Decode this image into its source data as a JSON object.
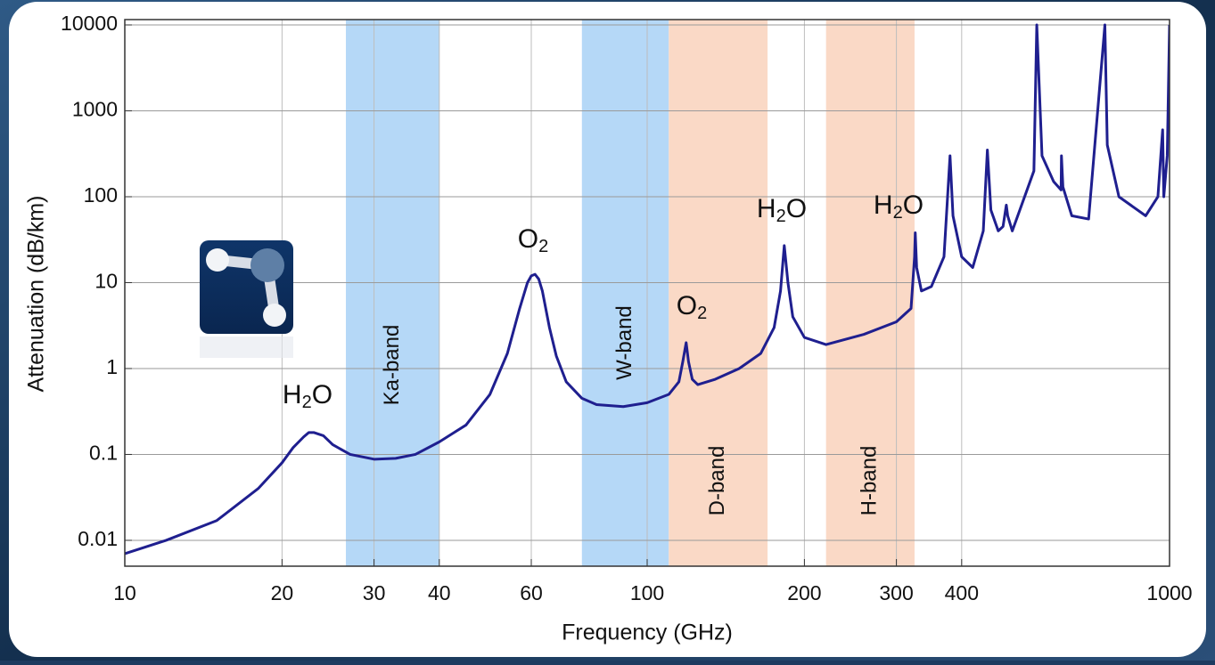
{
  "chart_data": {
    "type": "line",
    "xlabel": "Frequency (GHz)",
    "ylabel": "Attenuation (dB/km)",
    "xscale": "log",
    "yscale": "log",
    "xlim": [
      10,
      1000
    ],
    "ylim": [
      0.005,
      10000
    ],
    "xticks": [
      10,
      20,
      30,
      40,
      60,
      100,
      200,
      300,
      400,
      1000
    ],
    "yticks": [
      0.01,
      0.1,
      1,
      10,
      100,
      1000,
      10000
    ],
    "grid": true,
    "x": [
      10,
      12,
      15,
      18,
      20,
      21,
      22,
      22.5,
      23,
      24,
      25,
      27,
      30,
      33,
      36,
      40,
      45,
      50,
      54,
      57,
      59,
      60,
      61,
      62,
      63,
      65,
      67,
      70,
      75,
      80,
      90,
      100,
      110,
      115,
      117,
      118.75,
      120,
      122,
      125,
      135,
      150,
      165,
      175,
      180,
      183,
      186,
      190,
      200,
      220,
      260,
      300,
      320,
      325,
      326,
      328,
      335,
      350,
      370,
      380,
      385,
      400,
      420,
      440,
      448,
      455,
      470,
      480,
      487,
      490,
      500,
      550,
      557,
      570,
      600,
      620,
      621,
      625,
      650,
      700,
      752,
      760,
      800,
      900,
      950,
      970,
      975,
      990,
      1000
    ],
    "series": [
      {
        "color": "#1f1f8f",
        "values": [
          0.007,
          0.01,
          0.017,
          0.04,
          0.08,
          0.12,
          0.16,
          0.18,
          0.18,
          0.165,
          0.13,
          0.1,
          0.088,
          0.09,
          0.1,
          0.14,
          0.22,
          0.5,
          1.5,
          5,
          10,
          12,
          12.5,
          11,
          8,
          3,
          1.4,
          0.7,
          0.45,
          0.38,
          0.36,
          0.4,
          0.5,
          0.7,
          1.2,
          2,
          1.2,
          0.75,
          0.65,
          0.75,
          1,
          1.5,
          3,
          8,
          27,
          10,
          4,
          2.3,
          1.9,
          2.5,
          3.5,
          5,
          20,
          38,
          15,
          8,
          9,
          20,
          300,
          60,
          20,
          15,
          40,
          350,
          70,
          40,
          45,
          80,
          60,
          40,
          200,
          10000,
          300,
          150,
          120,
          300,
          130,
          60,
          55,
          10000,
          400,
          100,
          60,
          100,
          600,
          100,
          300,
          10000
        ]
      }
    ],
    "bands": [
      {
        "label": "Ka-band",
        "range": [
          26.5,
          40
        ],
        "color": "#b5d8f7"
      },
      {
        "label": "W-band",
        "range": [
          75,
          110
        ],
        "color": "#b5d8f7"
      },
      {
        "label": "D-band",
        "range": [
          110,
          170
        ],
        "color": "#fad9c6"
      },
      {
        "label": "H-band",
        "range": [
          220,
          325
        ],
        "color": "#fad9c6"
      }
    ],
    "annotations": [
      {
        "parts": [
          "H",
          "2",
          "O"
        ]
      },
      {
        "parts": [
          "O",
          "2"
        ]
      },
      {
        "parts": [
          "O",
          "2"
        ]
      },
      {
        "parts": [
          "H",
          "2",
          "O"
        ]
      },
      {
        "parts": [
          "H",
          "2",
          "O"
        ]
      }
    ]
  }
}
